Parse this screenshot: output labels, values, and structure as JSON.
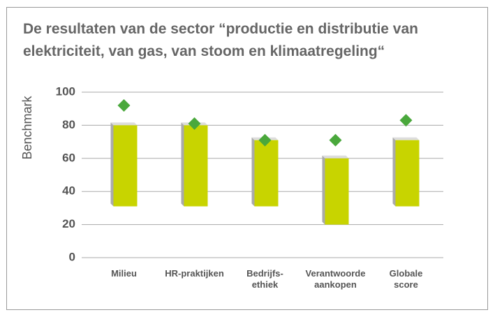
{
  "chart_data": {
    "type": "floating-bar",
    "title": "De resultaten van de sector “productie en distributie van elektriciteit, van gas, van stoom en klimaatregeling“",
    "y_label": "Benchmark",
    "categories": [
      "Milieu",
      "HR-praktijken",
      "Bedrijfs-\nethiek",
      "Verantwoorde\naankopen",
      "Globale\nscore"
    ],
    "low": [
      31,
      31,
      31,
      20,
      31
    ],
    "high": [
      80,
      80,
      71,
      60,
      71
    ],
    "marker_values": [
      92,
      81,
      71,
      71,
      83
    ],
    "bar_color": "#c8d400",
    "marker_color": "#4aa83c",
    "ylim": [
      0,
      100
    ],
    "yticks": [
      0,
      20,
      40,
      60,
      80,
      100
    ],
    "grid": true
  }
}
